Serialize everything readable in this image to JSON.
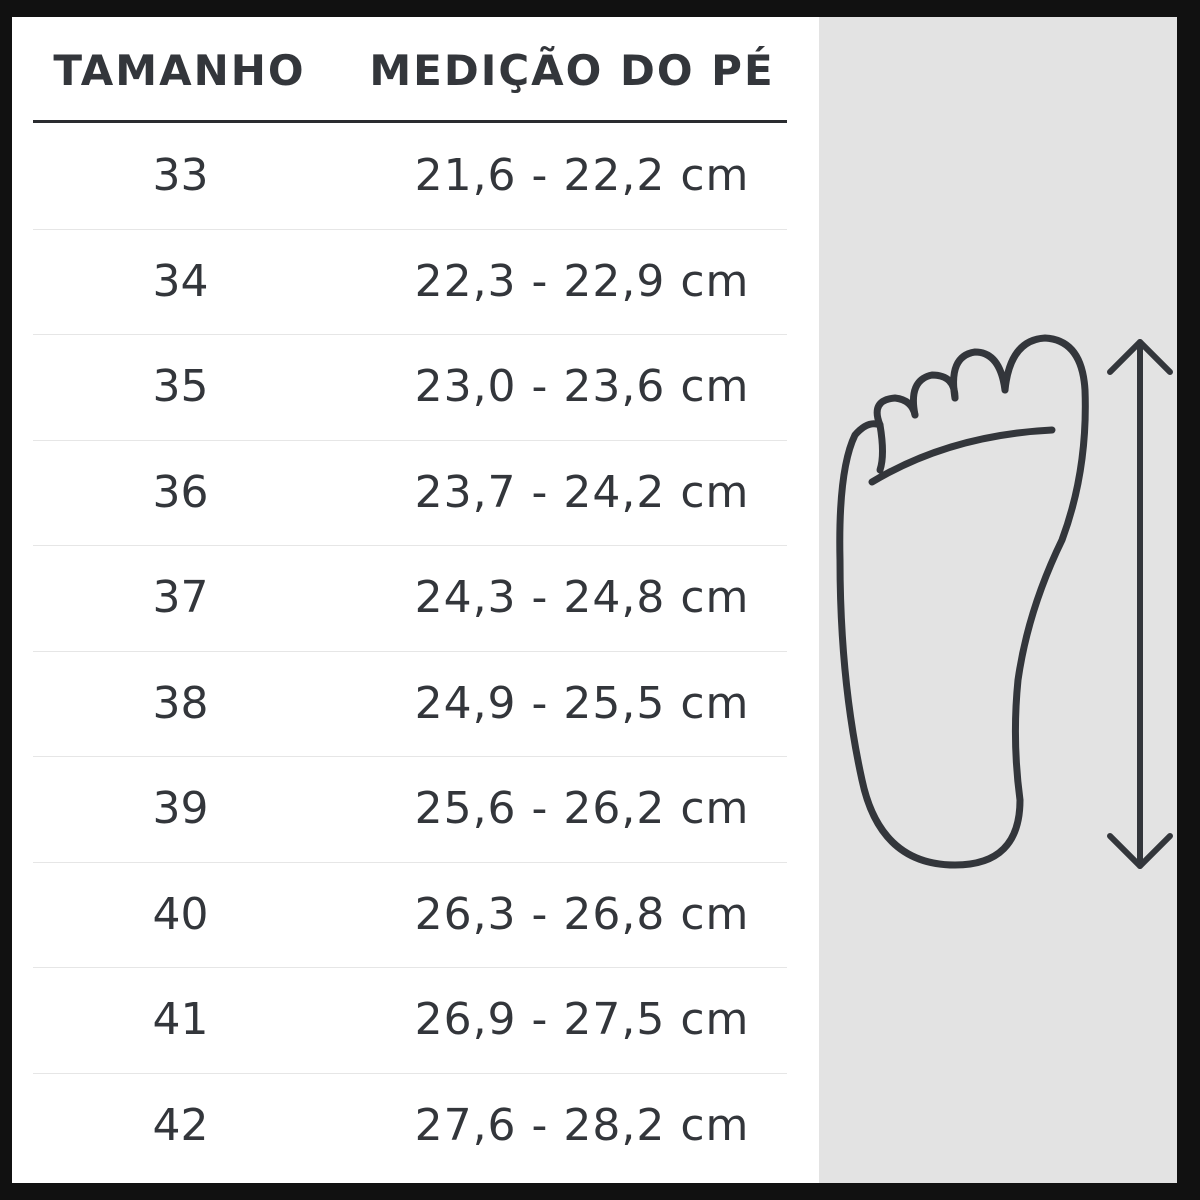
{
  "headers": {
    "size": "TAMANHO",
    "measurement": "MEDIÇÃO DO PÉ"
  },
  "rows": [
    {
      "size": "33",
      "measurement": "21,6 - 22,2 cm"
    },
    {
      "size": "34",
      "measurement": "22,3 - 22,9 cm"
    },
    {
      "size": "35",
      "measurement": "23,0 - 23,6 cm"
    },
    {
      "size": "36",
      "measurement": "23,7 - 24,2 cm"
    },
    {
      "size": "37",
      "measurement": "24,3 - 24,8 cm"
    },
    {
      "size": "38",
      "measurement": "24,9 - 25,5 cm"
    },
    {
      "size": "39",
      "measurement": "25,6 - 26,2 cm"
    },
    {
      "size": "40",
      "measurement": "26,3 - 26,8 cm"
    },
    {
      "size": "41",
      "measurement": "26,9 - 27,5 cm"
    },
    {
      "size": "42",
      "measurement": "27,6 - 28,2 cm"
    }
  ],
  "icons": [
    "foot-outline-icon",
    "double-arrow-vertical-icon"
  ],
  "colors": {
    "text": "#33363b",
    "panel": "#e3e3e3",
    "frame": "#111111"
  }
}
